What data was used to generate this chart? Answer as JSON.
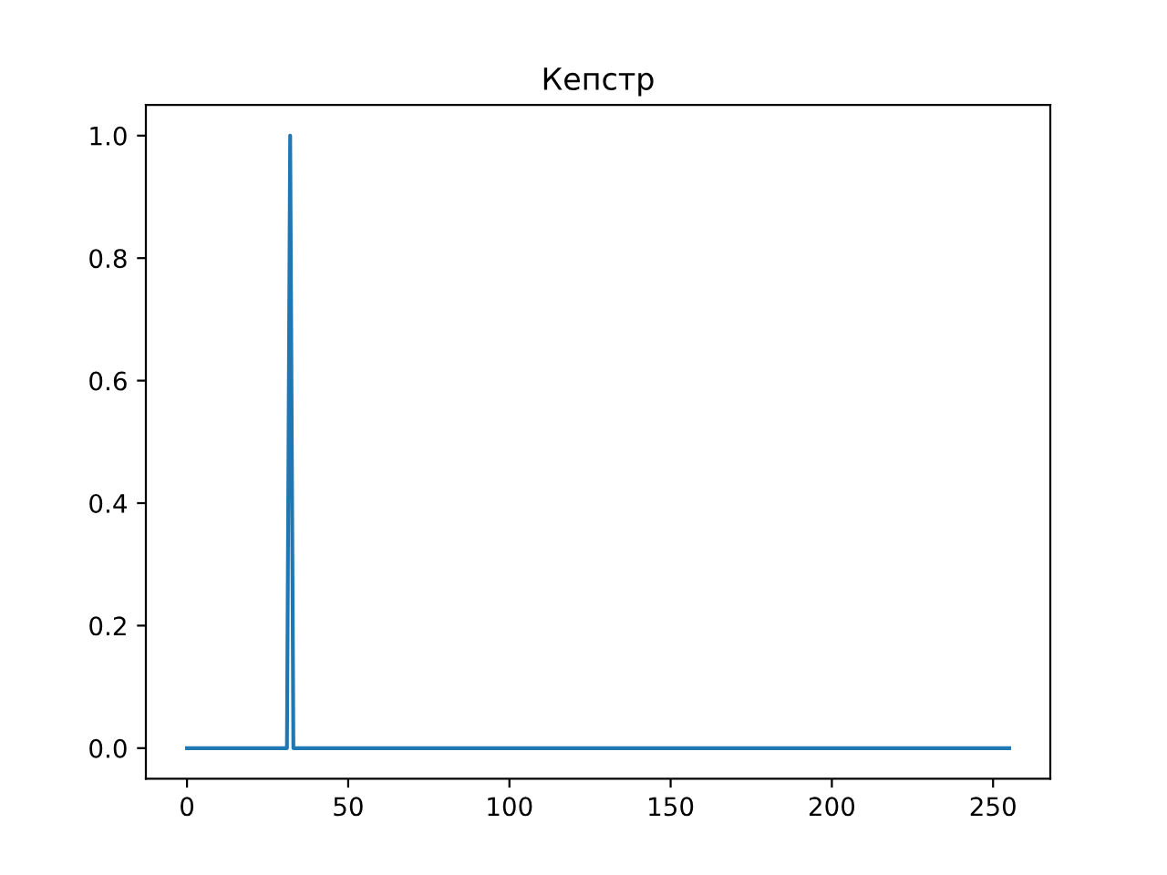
{
  "chart_data": {
    "type": "line",
    "title": "Кепстр",
    "x": [
      0,
      31,
      32,
      33,
      255
    ],
    "series": [
      {
        "color": "#1f77b4",
        "values": [
          0,
          0,
          1,
          0,
          0
        ]
      }
    ],
    "xlim": [
      -12.75,
      267.75
    ],
    "xticks": [
      0,
      50,
      100,
      150,
      200,
      250
    ],
    "ylim": [
      -0.05,
      1.05
    ],
    "yticks": [
      {
        "value": 0,
        "label": "0.0"
      },
      0.2,
      0.4,
      0.6,
      0.8,
      {
        "value": 1,
        "label": "1.0"
      }
    ],
    "grid": false,
    "legend": false,
    "marker": "none",
    "line_style": "solid"
  }
}
